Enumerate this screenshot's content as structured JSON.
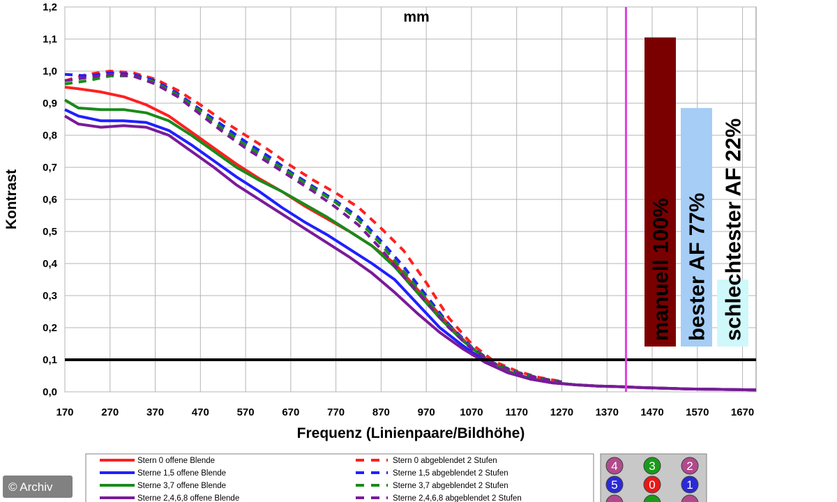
{
  "chart_data": {
    "type": "line",
    "title_visible_fragment": "mm",
    "xlabel": "Frequenz (Linienpaare/Bildhöhe)",
    "ylabel": "Kontrast",
    "xlim": [
      170,
      1700
    ],
    "ylim": [
      0,
      1.2
    ],
    "x_ticks": [
      "170",
      "270",
      "370",
      "470",
      "570",
      "670",
      "770",
      "870",
      "970",
      "1070",
      "1170",
      "1270",
      "1370",
      "1470",
      "1570",
      "1670"
    ],
    "y_ticks": [
      "0,0",
      "0,1",
      "0,2",
      "0,3",
      "0,4",
      "0,5",
      "0,6",
      "0,7",
      "0,8",
      "0,9",
      "1,0",
      "1,1",
      "1,2"
    ],
    "grid": true,
    "reference_line": {
      "y": 0.1,
      "color": "#000000"
    },
    "marker_line": {
      "x": 1412,
      "color": "#e040e0"
    },
    "series": [
      {
        "name": "Stern 0 offene Blende",
        "color": "#ff2020",
        "dash": false,
        "x": [
          170,
          200,
          250,
          300,
          350,
          400,
          450,
          500,
          550,
          600,
          650,
          700,
          750,
          800,
          850,
          900,
          950,
          1000,
          1050,
          1100,
          1150,
          1200,
          1250,
          1300,
          1350,
          1400,
          1450,
          1500,
          1550,
          1600,
          1700
        ],
        "y": [
          0.95,
          0.945,
          0.935,
          0.92,
          0.895,
          0.86,
          0.81,
          0.76,
          0.71,
          0.665,
          0.625,
          0.58,
          0.54,
          0.5,
          0.455,
          0.4,
          0.32,
          0.24,
          0.165,
          0.1,
          0.062,
          0.04,
          0.028,
          0.022,
          0.018,
          0.016,
          0.013,
          0.011,
          0.009,
          0.008,
          0.006
        ]
      },
      {
        "name": "Sterne 1,5 offene Blende",
        "color": "#2020ff",
        "dash": false,
        "x": [
          170,
          200,
          250,
          300,
          350,
          400,
          450,
          500,
          550,
          600,
          650,
          700,
          750,
          800,
          850,
          900,
          950,
          1000,
          1050,
          1100,
          1150,
          1200,
          1250,
          1300,
          1350,
          1400,
          1450,
          1500,
          1550,
          1600,
          1700
        ],
        "y": [
          0.88,
          0.86,
          0.845,
          0.845,
          0.84,
          0.815,
          0.77,
          0.72,
          0.67,
          0.625,
          0.575,
          0.53,
          0.49,
          0.445,
          0.4,
          0.35,
          0.275,
          0.2,
          0.145,
          0.095,
          0.06,
          0.04,
          0.028,
          0.022,
          0.018,
          0.016,
          0.013,
          0.011,
          0.009,
          0.008,
          0.006
        ]
      },
      {
        "name": "Sterne 3,7 offene Blende",
        "color": "#1a8a1a",
        "dash": false,
        "x": [
          170,
          200,
          250,
          300,
          350,
          400,
          450,
          500,
          550,
          600,
          650,
          700,
          750,
          800,
          850,
          900,
          950,
          1000,
          1050,
          1100,
          1150,
          1200,
          1250,
          1300,
          1350,
          1400,
          1450,
          1500,
          1550,
          1600,
          1700
        ],
        "y": [
          0.91,
          0.885,
          0.88,
          0.88,
          0.87,
          0.845,
          0.8,
          0.75,
          0.7,
          0.66,
          0.625,
          0.585,
          0.545,
          0.5,
          0.455,
          0.39,
          0.31,
          0.23,
          0.16,
          0.105,
          0.065,
          0.042,
          0.029,
          0.022,
          0.018,
          0.016,
          0.013,
          0.011,
          0.009,
          0.008,
          0.006
        ]
      },
      {
        "name": "Sterne 2,4,6,8 offene Blende",
        "color": "#7a1a9a",
        "dash": false,
        "x": [
          170,
          200,
          250,
          300,
          350,
          400,
          450,
          500,
          550,
          600,
          650,
          700,
          750,
          800,
          850,
          900,
          950,
          1000,
          1050,
          1100,
          1150,
          1200,
          1250,
          1300,
          1350,
          1400,
          1450,
          1500,
          1550,
          1600,
          1700
        ],
        "y": [
          0.86,
          0.835,
          0.825,
          0.83,
          0.825,
          0.8,
          0.75,
          0.7,
          0.645,
          0.6,
          0.555,
          0.51,
          0.465,
          0.42,
          0.37,
          0.31,
          0.245,
          0.185,
          0.135,
          0.092,
          0.06,
          0.04,
          0.028,
          0.022,
          0.018,
          0.016,
          0.013,
          0.011,
          0.009,
          0.008,
          0.006
        ]
      },
      {
        "name": "Stern 0 abgeblendet 2 Stufen",
        "color": "#ff2020",
        "dash": true,
        "x": [
          170,
          220,
          270,
          320,
          370,
          420,
          470,
          520,
          570,
          620,
          670,
          720,
          770,
          820,
          870,
          920,
          970,
          1020,
          1070,
          1120,
          1170,
          1220,
          1270
        ],
        "y": [
          0.97,
          0.99,
          1.0,
          0.995,
          0.975,
          0.94,
          0.895,
          0.845,
          0.8,
          0.755,
          0.705,
          0.66,
          0.62,
          0.575,
          0.51,
          0.44,
          0.34,
          0.23,
          0.15,
          0.095,
          0.065,
          0.045,
          0.032
        ]
      },
      {
        "name": "Sterne 1,5 abgeblendet 2 Stufen",
        "color": "#2020ff",
        "dash": true,
        "x": [
          170,
          220,
          270,
          320,
          370,
          420,
          470,
          520,
          570,
          620,
          670,
          720,
          770,
          820,
          870,
          920,
          970,
          1020,
          1070,
          1120,
          1170,
          1220,
          1270
        ],
        "y": [
          0.99,
          0.985,
          0.995,
          0.99,
          0.97,
          0.93,
          0.88,
          0.83,
          0.78,
          0.735,
          0.685,
          0.64,
          0.595,
          0.545,
          0.47,
          0.39,
          0.3,
          0.21,
          0.14,
          0.09,
          0.062,
          0.043,
          0.031
        ]
      },
      {
        "name": "Sterne 3,7 abgeblendet 2 Stufen",
        "color": "#1a8a1a",
        "dash": true,
        "x": [
          170,
          220,
          270,
          320,
          370,
          420,
          470,
          520,
          570,
          620,
          670,
          720,
          770,
          820,
          870,
          920,
          970,
          1020,
          1070,
          1120,
          1170,
          1220,
          1270
        ],
        "y": [
          0.96,
          0.97,
          0.985,
          0.985,
          0.965,
          0.925,
          0.875,
          0.82,
          0.77,
          0.725,
          0.68,
          0.635,
          0.59,
          0.535,
          0.46,
          0.375,
          0.29,
          0.205,
          0.138,
          0.09,
          0.062,
          0.043,
          0.031
        ]
      },
      {
        "name": "Sterne 2,4,6,8 abgeblendet 2 Stufen",
        "color": "#7a1a9a",
        "dash": true,
        "x": [
          170,
          220,
          270,
          320,
          370,
          420,
          470,
          520,
          570,
          620,
          670,
          720,
          770,
          820,
          870,
          920,
          970,
          1020,
          1070,
          1120,
          1170,
          1220,
          1270
        ],
        "y": [
          0.97,
          0.98,
          0.99,
          0.985,
          0.96,
          0.92,
          0.865,
          0.81,
          0.76,
          0.715,
          0.67,
          0.625,
          0.575,
          0.52,
          0.445,
          0.36,
          0.28,
          0.2,
          0.135,
          0.088,
          0.06,
          0.042,
          0.03
        ]
      }
    ],
    "bars": [
      {
        "label": "manuell 100%",
        "value": 1.105,
        "color": "#7a0000"
      },
      {
        "label": "bester AF 77%",
        "value": 0.885,
        "color": "#a6cdf5"
      },
      {
        "label": "schlechtester AF 22%",
        "value": 0.35,
        "color": "#cff8fb"
      }
    ]
  },
  "legend": {
    "left": [
      "Stern 0 offene Blende",
      "Sterne 1,5 offene Blende",
      "Sterne 3,7 offene Blende",
      "Sterne 2,4,6,8 offene Blende"
    ],
    "right": [
      "Stern 0 abgeblendet 2 Stufen",
      "Sterne 1,5 abgeblendet 2 Stufen",
      "Sterne 3,7 abgeblendet 2 Stufen",
      "Sterne 2,4,6,8 abgeblendet 2 Stufen"
    ]
  },
  "star_grid": [
    {
      "num": "4",
      "color": "#b04a8c"
    },
    {
      "num": "3",
      "color": "#1a9a1a"
    },
    {
      "num": "2",
      "color": "#b04a8c"
    },
    {
      "num": "5",
      "color": "#2a2ad8"
    },
    {
      "num": "0",
      "color": "#e81818"
    },
    {
      "num": "1",
      "color": "#2a2ad8"
    },
    {
      "num": "",
      "color": "#b04a8c"
    },
    {
      "num": "",
      "color": "#1a9a1a"
    },
    {
      "num": "",
      "color": "#b04a8c"
    }
  ],
  "credit": "© Archiv"
}
